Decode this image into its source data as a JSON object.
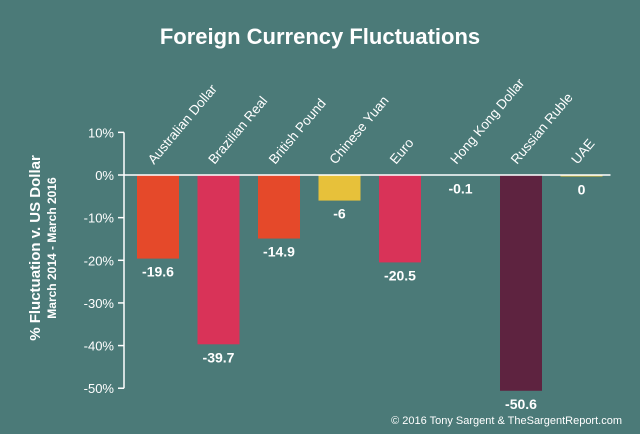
{
  "chart_data": {
    "type": "bar",
    "title": "Foreign Currency Fluctuations",
    "ylabel": "% Fluctuation v. US Dollar",
    "ylabel_sub": "March 2014 - March 2016",
    "categories": [
      "Australian Dollar",
      "Brazilian Real",
      "British Pound",
      "Chinese Yuan",
      "Euro",
      "Hong Kong Dollar",
      "Russian Ruble",
      "UAE"
    ],
    "values": [
      -19.6,
      -39.7,
      -14.9,
      -6,
      -20.5,
      -0.1,
      -50.6,
      0
    ],
    "data_labels": [
      "-19.6",
      "-39.7",
      "-14.9",
      "-6",
      "-20.5",
      "-0.1",
      "-50.6",
      "0"
    ],
    "colors": [
      "#e5492a",
      "#d93358",
      "#e5492a",
      "#e7c13a",
      "#d93358",
      "#e7c13a",
      "#5e2340",
      "#e7c13a"
    ],
    "ylim": [
      -55,
      13
    ],
    "yticks": [
      10,
      0,
      -10,
      -20,
      -30,
      -40,
      -50
    ],
    "ytick_labels": [
      "10%",
      "0%",
      "-10%",
      "-20%",
      "-30%",
      "-40%",
      "-50%"
    ],
    "grid": false,
    "legend": "none"
  },
  "credit": "© 2016 Tony Sargent & TheSargentReport.com"
}
